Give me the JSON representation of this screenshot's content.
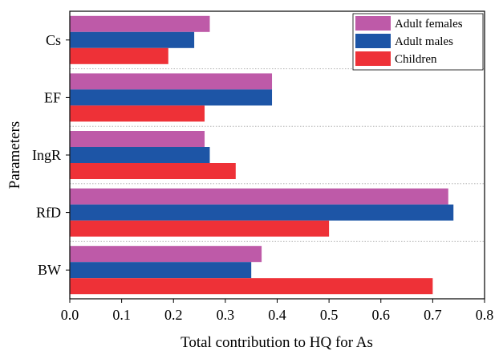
{
  "chart_data": {
    "type": "bar",
    "orientation": "horizontal",
    "categories": [
      "Cs",
      "EF",
      "IngR",
      "RfD",
      "BW"
    ],
    "series": [
      {
        "name": "Adult females",
        "color": "#be5aa8",
        "values": [
          0.27,
          0.39,
          0.26,
          0.73,
          0.37
        ]
      },
      {
        "name": "Adult males",
        "color": "#1d55a6",
        "values": [
          0.24,
          0.39,
          0.27,
          0.74,
          0.35
        ]
      },
      {
        "name": "Children",
        "color": "#ee3137",
        "values": [
          0.19,
          0.26,
          0.32,
          0.5,
          0.7
        ]
      }
    ],
    "xlabel": "Total contribution to HQ for As",
    "ylabel": "Parameters",
    "xlim": [
      0,
      0.8
    ],
    "xticks": [
      "0.0",
      "0.1",
      "0.2",
      "0.3",
      "0.4",
      "0.5",
      "0.6",
      "0.7",
      "0.8"
    ],
    "grid": "dotted separators between categories",
    "legend_position": "top-right"
  }
}
